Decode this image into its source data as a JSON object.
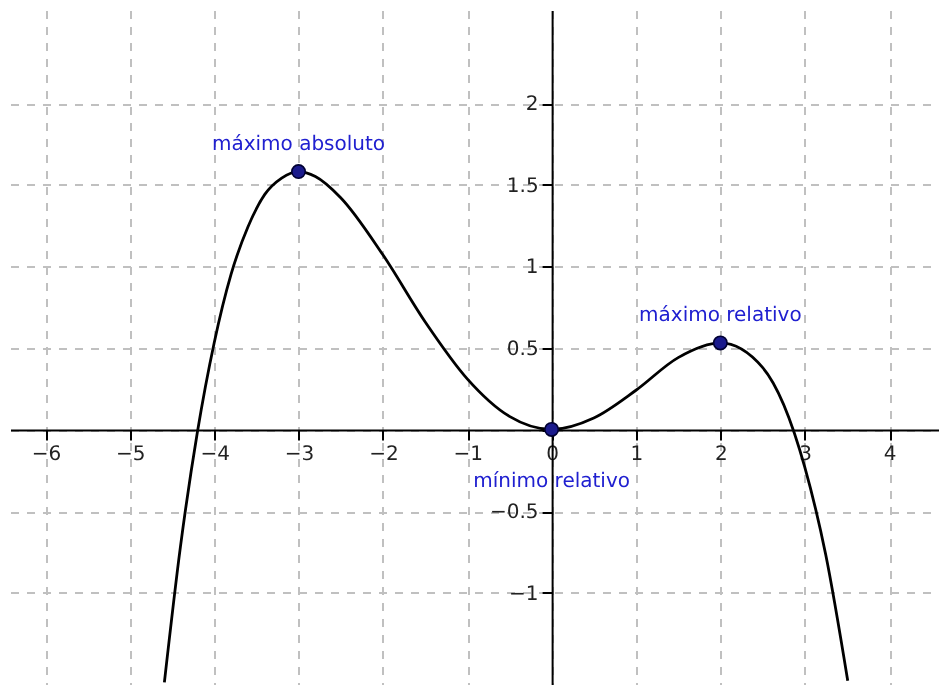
{
  "chart_data": {
    "type": "line",
    "xlim": [
      -6.42,
      4.58
    ],
    "ylim": [
      -1.56,
      2.57
    ],
    "xticks": [
      -6,
      -5,
      -4,
      -3,
      -2,
      -1,
      0,
      1,
      2,
      3,
      4
    ],
    "yticks": [
      -1,
      -0.5,
      {
        "value": 0,
        "label": null
      },
      0.5,
      1,
      1.5,
      2
    ],
    "grid": true,
    "series": [
      {
        "color": "#000000",
        "marker": "none",
        "line_style": "solid",
        "x": [
          -4.59,
          -4.4,
          -4.2,
          -4.0,
          -3.8,
          -3.6,
          -3.4,
          -3.2,
          -3.0,
          -2.8,
          -2.5,
          -2.0,
          -1.5,
          -1.0,
          -0.5,
          0,
          0.5,
          1.0,
          1.5,
          2.0,
          2.5,
          3.0,
          3.25,
          3.51
        ],
        "values": [
          -1.55,
          -0.72,
          -0.02,
          0.53,
          0.95,
          1.24,
          1.44,
          1.54,
          1.58,
          1.55,
          1.42,
          1.07,
          0.66,
          0.31,
          0.08,
          0,
          0.07,
          0.24,
          0.44,
          0.53,
          0.38,
          -0.23,
          -0.77,
          -1.54
        ]
      },
      {
        "type": "scatter",
        "color": "#1a1a8c",
        "marker": "circle",
        "x": [
          -3,
          0,
          2
        ],
        "values": [
          1.58,
          0,
          0.53
        ]
      }
    ],
    "annotations": [
      {
        "text": "máximo absoluto",
        "x": -3,
        "y": 1.58
      },
      {
        "text": "mínimo relativo",
        "x": 0,
        "y": 0
      },
      {
        "text": "máximo relativo",
        "x": 2,
        "y": 0.53
      }
    ]
  }
}
